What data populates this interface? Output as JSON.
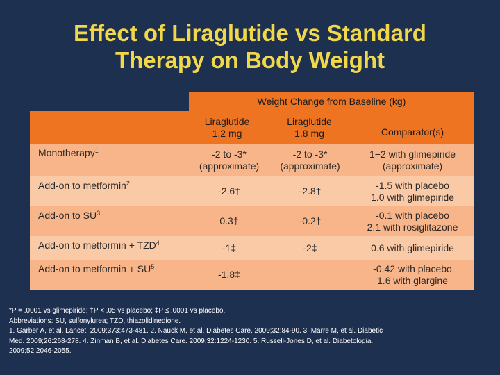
{
  "slide": {
    "title_line1": "Effect of Liraglutide vs Standard",
    "title_line2": "Therapy on Body Weight"
  },
  "table": {
    "group_header": "Weight Change from Baseline (kg)",
    "columns": [
      {
        "line1": "Liraglutide",
        "line2": "1.2 mg"
      },
      {
        "line1": "Liraglutide",
        "line2": "1.8 mg"
      },
      {
        "line1": "Comparator(s)",
        "line2": ""
      }
    ],
    "rows": [
      {
        "label": "Monotherapy",
        "sup": "1",
        "c1": [
          "-2 to -3*",
          "(approximate)"
        ],
        "c2": [
          "-2 to -3*",
          "(approximate)"
        ],
        "c3": [
          "1−2 with glimepiride",
          "(approximate)"
        ]
      },
      {
        "label": "Add-on to metformin",
        "sup": "2",
        "c1": [
          "-2.6†",
          ""
        ],
        "c2": [
          "-2.8†",
          ""
        ],
        "c3": [
          "-1.5 with placebo",
          "1.0 with glimepiride"
        ]
      },
      {
        "label": "Add-on to SU",
        "sup": "3",
        "c1": [
          "0.3†",
          ""
        ],
        "c2": [
          "-0.2†",
          ""
        ],
        "c3": [
          "-0.1 with placebo",
          "2.1 with rosiglitazone"
        ]
      },
      {
        "label": "Add-on to metformin + TZD",
        "sup": "4",
        "c1": [
          "-1‡",
          ""
        ],
        "c2": [
          "-2‡",
          ""
        ],
        "c3": [
          "0.6 with glimepiride",
          ""
        ]
      },
      {
        "label": "Add-on to metformin + SU",
        "sup": "5",
        "c1": [
          "-1.8‡",
          ""
        ],
        "c2": [
          "",
          ""
        ],
        "c3": [
          "-0.42 with placebo",
          "1.6 with glargine"
        ]
      }
    ]
  },
  "footnotes": {
    "line1": "*P = .0001 vs glimepiride; †P < .05 vs placebo; ‡P ≤ .0001 vs placebo.",
    "line2": "Abbreviations: SU, sulfonylurea; TZD, thiazolidinedione.",
    "line3": "1. Garber A, et al. Lancet. 2009;373:473-481. 2. Nauck M, et al. Diabetes Care. 2009;32:84-90. 3. Marre M, et al. Diabetic",
    "line4": "Med. 2009;26:268-278. 4. Zinman B, et al. Diabetes Care. 2009;32:1224-1230. 5. Russell-Jones D, et al. Diabetologia.",
    "line5": "2009;52:2046-2055."
  }
}
